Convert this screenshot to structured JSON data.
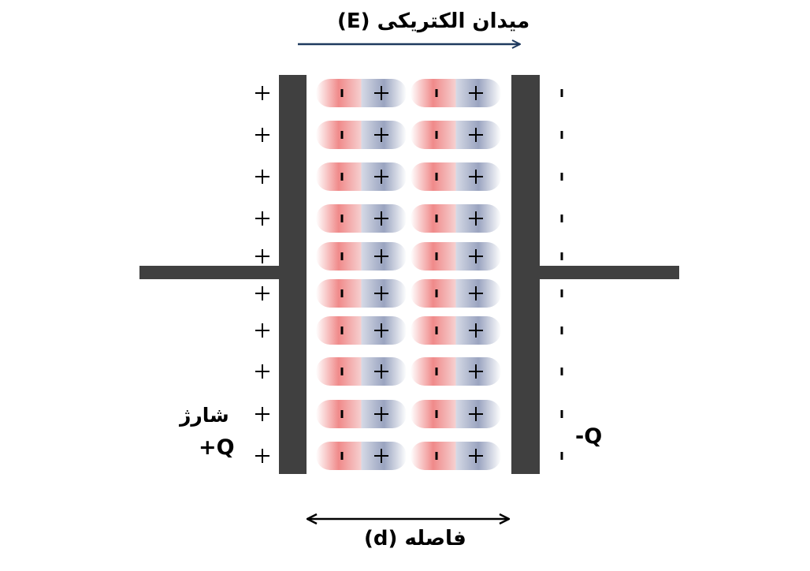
{
  "labels": {
    "electric_field": "میدان الکتریکی (E)",
    "distance": "فاصله (d)",
    "charge_word": "شارژ",
    "positive_charge": "+Q",
    "negative_charge": "-Q"
  },
  "symbols": {
    "plus": "+",
    "minus": "-"
  },
  "dipole_rows": 10,
  "dipole_columns": 2,
  "colors": {
    "plate": "#404040",
    "field_arrow": "#1f3a5f",
    "dipole_negative": "#f08a8a",
    "dipole_positive": "#9aa4c0",
    "text": "#000000"
  }
}
